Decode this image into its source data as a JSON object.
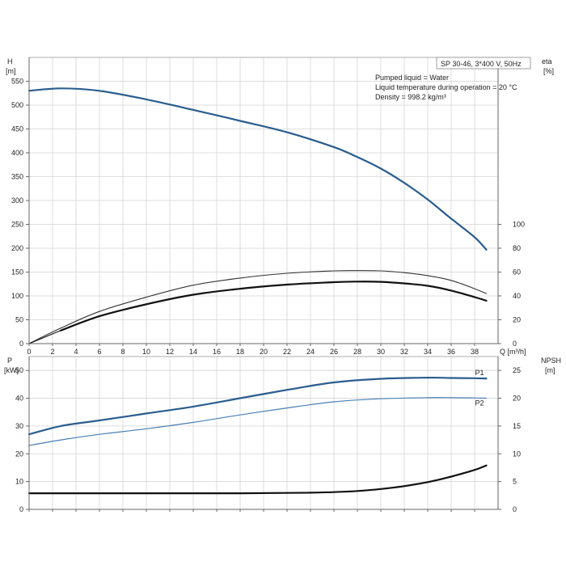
{
  "chart_data": [
    {
      "type": "line",
      "id": "upper",
      "info_box": {
        "title": "SP 30-46, 3*400 V, 50Hz",
        "lines": [
          "Pumped liquid = Water",
          "Liquid temperature during operation = 20 °C",
          "Density = 998.2 kg/m³"
        ]
      },
      "left_axis": {
        "label_line1": "H",
        "label_line2": "[m]",
        "ticks": [
          0,
          50,
          100,
          150,
          200,
          250,
          300,
          350,
          400,
          450,
          500,
          550
        ],
        "ylim": [
          0,
          600
        ]
      },
      "right_axis": {
        "label_line1": "eta",
        "label_line2": "[%]",
        "ticks": [
          0,
          20,
          40,
          60,
          80,
          100
        ],
        "ylim": [
          0,
          240
        ]
      },
      "x_axis": {
        "label": "Q [m³/h]",
        "ticks": [
          0,
          2,
          4,
          6,
          8,
          10,
          12,
          14,
          16,
          18,
          20,
          22,
          24,
          26,
          28,
          30,
          32,
          34,
          36,
          38
        ],
        "xlim": [
          0,
          40
        ]
      },
      "series": [
        {
          "axis": "left",
          "color": "#2a5d8f",
          "width": 2.2,
          "x": [
            0,
            2.7,
            6,
            10,
            14,
            18,
            22,
            26,
            28,
            30,
            32,
            34,
            36,
            38,
            39
          ],
          "y": [
            530,
            535,
            530,
            512,
            490,
            467,
            443,
            412,
            391,
            367,
            337,
            302,
            262,
            223,
            197
          ]
        },
        {
          "axis": "left",
          "color": "#2a5d8f",
          "width": 1.2,
          "x": [
            0,
            2.7
          ],
          "y": [
            530,
            535
          ]
        },
        {
          "axis": "right",
          "color": "#333333",
          "width": 1.1,
          "x": [
            0,
            2.7,
            6,
            10,
            14,
            18,
            22,
            26,
            28,
            30,
            32,
            34,
            36,
            38,
            39
          ],
          "y": [
            0,
            13,
            27,
            39,
            49,
            55,
            59,
            61,
            61.2,
            61,
            59.5,
            57,
            53,
            46,
            42
          ]
        },
        {
          "axis": "right",
          "color": "#111111",
          "width": 2.2,
          "x": [
            2.7,
            6,
            10,
            14,
            18,
            22,
            26,
            28,
            30,
            32,
            34,
            36,
            38,
            39
          ],
          "y": [
            11,
            23,
            33,
            41,
            46,
            49.5,
            51.5,
            52,
            51.8,
            50.5,
            48.5,
            44.5,
            39,
            36
          ]
        },
        {
          "axis": "right",
          "color": "#111111",
          "width": 1.1,
          "x": [
            0,
            2.7
          ],
          "y": [
            0,
            11
          ]
        }
      ]
    },
    {
      "type": "line",
      "id": "lower",
      "left_axis": {
        "label_line1": "P",
        "label_line2": "[kW]",
        "ticks": [
          0,
          10,
          20,
          30,
          40,
          50
        ],
        "ylim": [
          0,
          55
        ]
      },
      "right_axis": {
        "label_line1": "NPSH",
        "label_line2": "[m]",
        "ticks": [
          0,
          5,
          10,
          15,
          20,
          25
        ],
        "ylim": [
          0,
          27.5
        ]
      },
      "x_axis": {
        "xlim": [
          0,
          40
        ]
      },
      "series": [
        {
          "name": "P1",
          "axis": "left",
          "color": "#2a5d8f",
          "width": 2.2,
          "x": [
            0,
            2.7,
            6,
            10,
            14,
            18,
            22,
            26,
            30,
            34,
            36,
            38,
            39
          ],
          "y": [
            27,
            30,
            32,
            34.5,
            37,
            40,
            43,
            45.7,
            47,
            47.4,
            47.3,
            47.2,
            47.1
          ]
        },
        {
          "name": "P2",
          "axis": "left",
          "color": "#4a7fb5",
          "width": 1.2,
          "x": [
            0,
            2.7,
            6,
            10,
            14,
            18,
            22,
            26,
            30,
            34,
            36,
            38,
            39
          ],
          "y": [
            23,
            25,
            27,
            29,
            31.3,
            34,
            36.5,
            38.7,
            39.8,
            40.2,
            40.2,
            40.1,
            40
          ]
        },
        {
          "axis": "right",
          "color": "#111111",
          "width": 2.2,
          "x": [
            0,
            2.7,
            10,
            18,
            24,
            28,
            31,
            34,
            36,
            38,
            39
          ],
          "y": [
            2.9,
            2.9,
            2.9,
            2.9,
            3.0,
            3.3,
            3.9,
            4.9,
            5.9,
            7.1,
            7.9
          ]
        }
      ]
    }
  ]
}
